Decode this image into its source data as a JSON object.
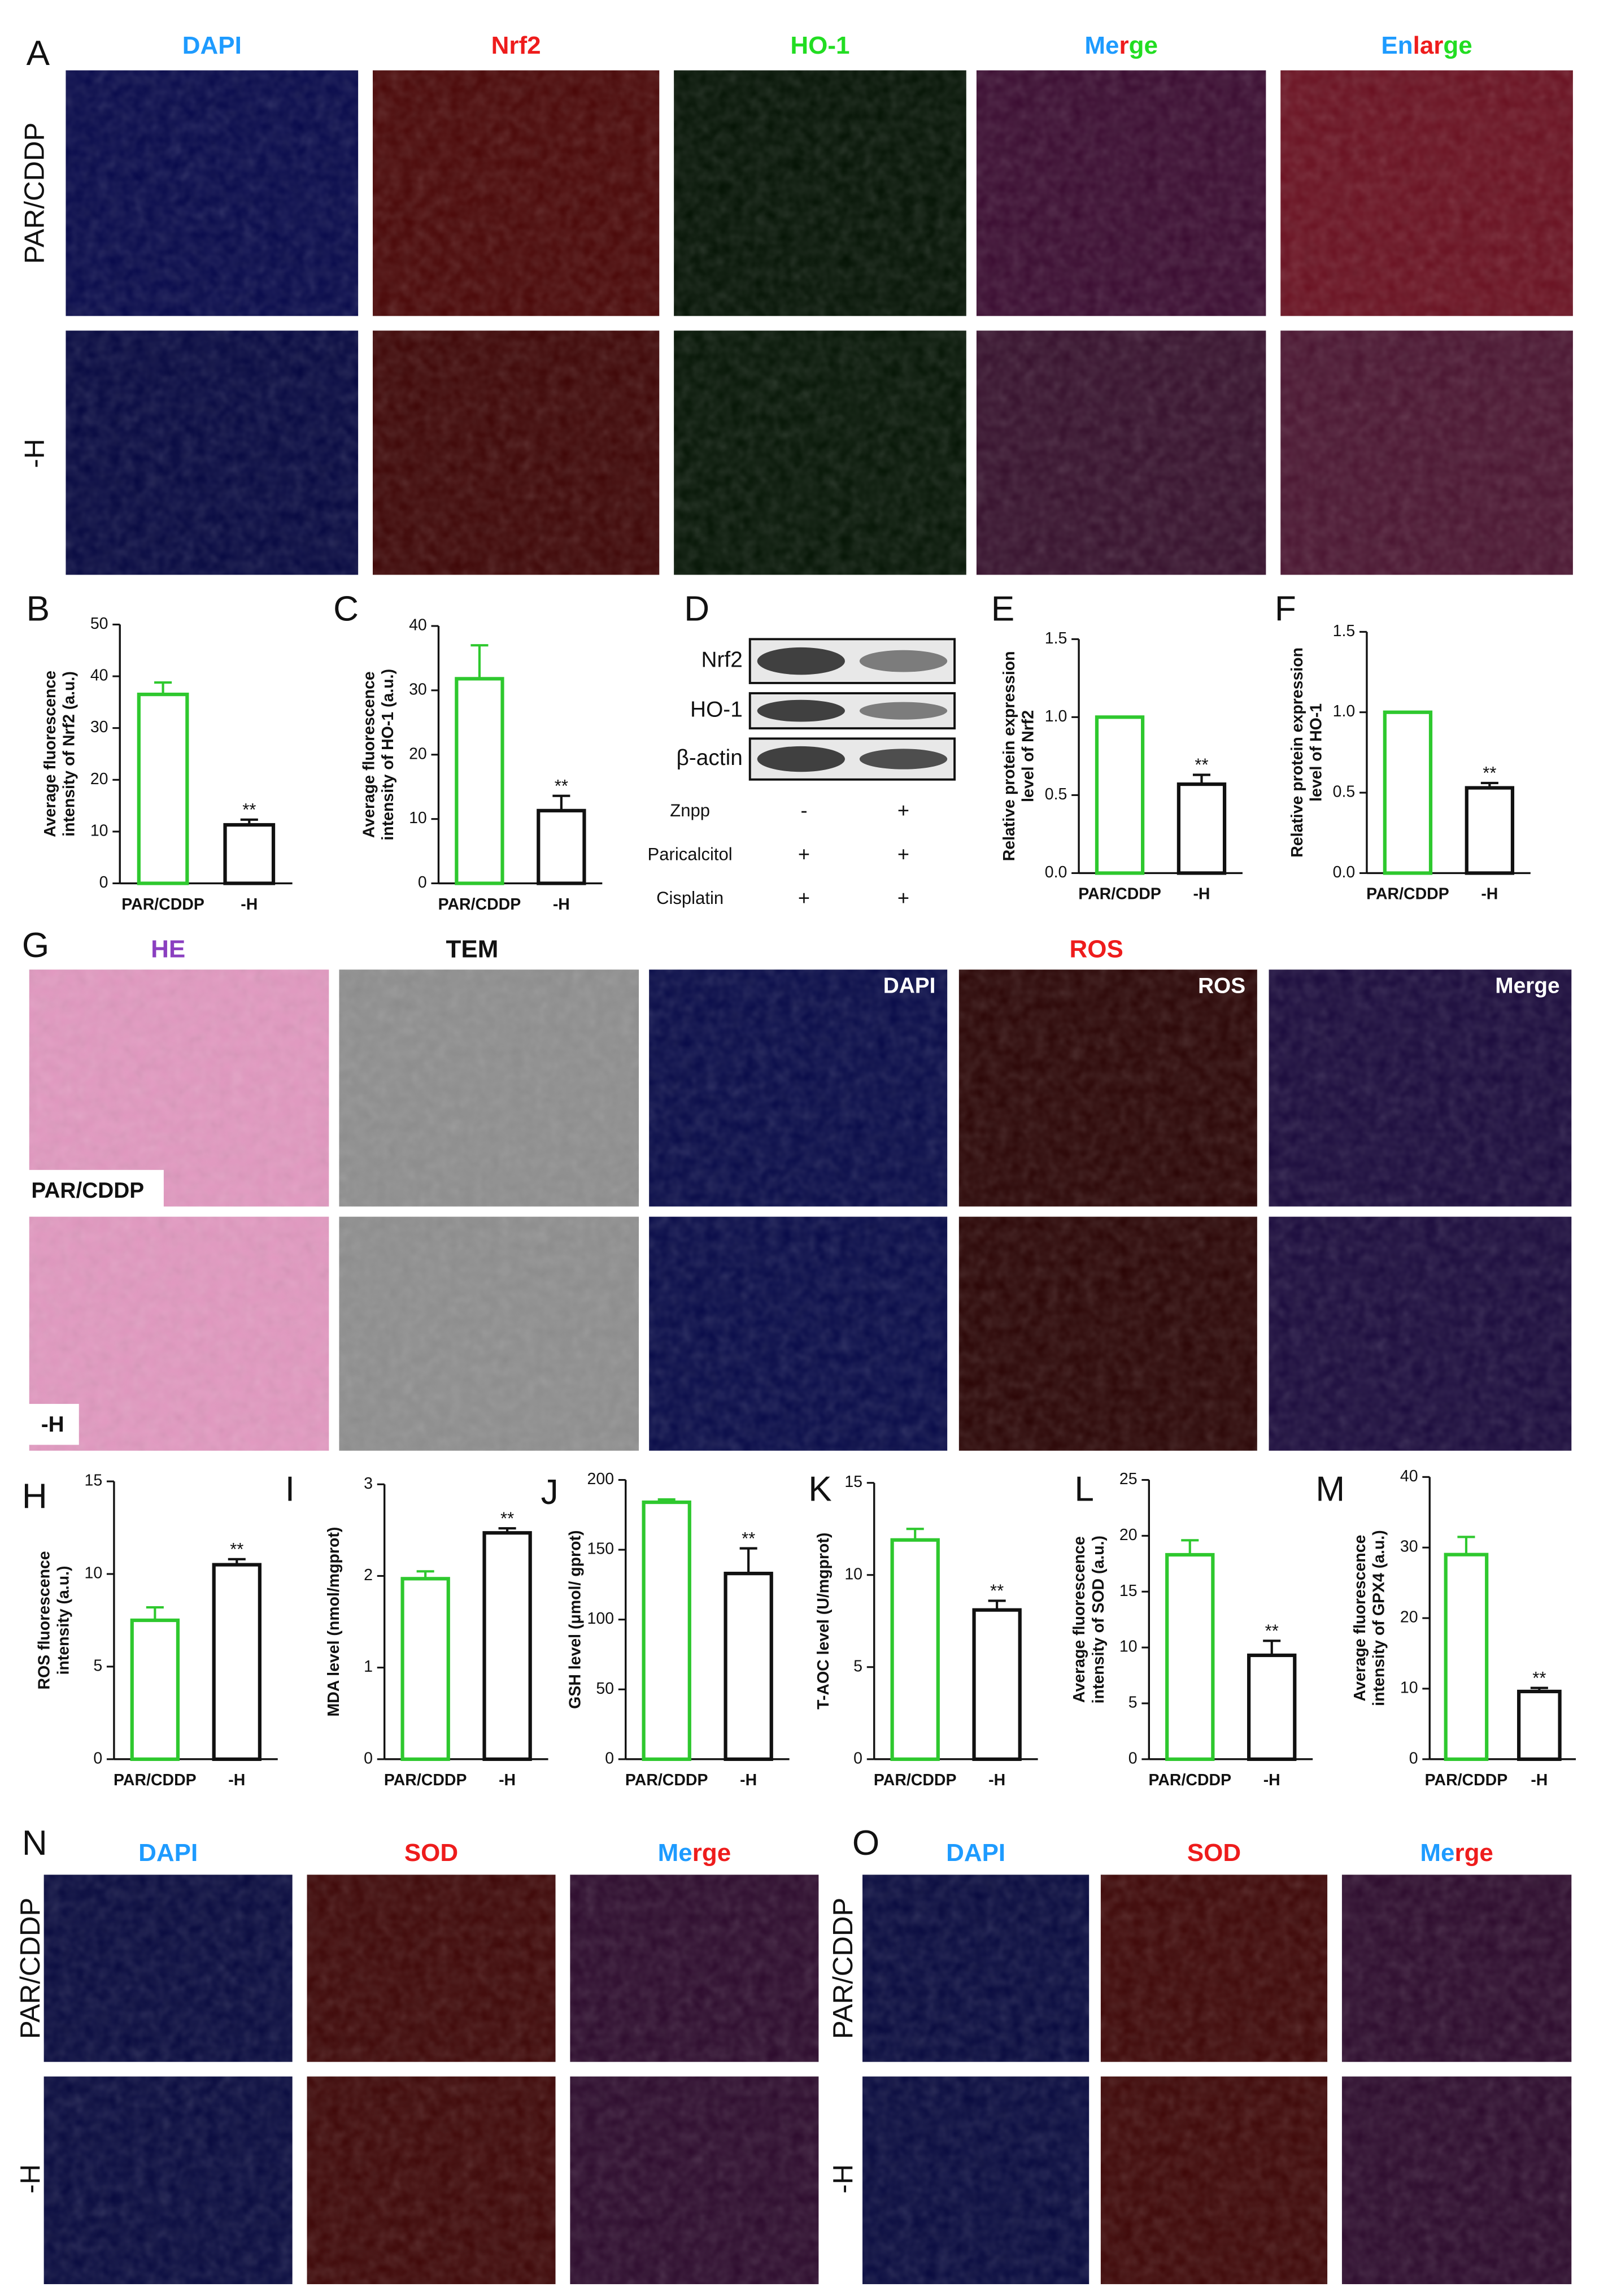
{
  "chart_data": [
    {
      "type": "bar",
      "label": "B",
      "ylabel": [
        "Average fluorescence",
        "intensity of Nrf2 (a.u.)"
      ],
      "categories": [
        "PAR/CDDP",
        "-H"
      ],
      "values": [
        36.5,
        11.3
      ],
      "errors": [
        2.3,
        1.0
      ],
      "significance": [
        null,
        "**"
      ],
      "colors": [
        "#2ec82e",
        "#111111"
      ],
      "ylim": [
        0,
        50
      ],
      "yticks": [
        0,
        10,
        20,
        30,
        40,
        50
      ]
    },
    {
      "type": "bar",
      "label": "C",
      "ylabel": [
        "Average fluorescence",
        "intensity of HO-1 (a.u.)"
      ],
      "categories": [
        "PAR/CDDP",
        "-H"
      ],
      "values": [
        31.8,
        11.3
      ],
      "errors": [
        5.2,
        2.3
      ],
      "significance": [
        null,
        "**"
      ],
      "colors": [
        "#2ec82e",
        "#111111"
      ],
      "ylim": [
        0,
        40
      ],
      "yticks": [
        0,
        10,
        20,
        30,
        40
      ]
    },
    {
      "type": "bar",
      "label": "E",
      "ylabel": [
        "Relative protein expression",
        "level of Nrf2"
      ],
      "categories": [
        "PAR/CDDP",
        "-H"
      ],
      "values": [
        1.0,
        0.57
      ],
      "errors": [
        0,
        0.06
      ],
      "significance": [
        null,
        "**"
      ],
      "colors": [
        "#2ec82e",
        "#111111"
      ],
      "ylim": [
        0,
        1.5
      ],
      "yticks": [
        {
          "value": 0,
          "label": "0.0"
        },
        0.5,
        {
          "value": 1,
          "label": "1.0"
        },
        1.5
      ]
    },
    {
      "type": "bar",
      "label": "F",
      "ylabel": [
        "Relative protein expression",
        "level of HO-1"
      ],
      "categories": [
        "PAR/CDDP",
        "-H"
      ],
      "values": [
        1.0,
        0.53
      ],
      "errors": [
        0,
        0.03
      ],
      "significance": [
        null,
        "**"
      ],
      "colors": [
        "#2ec82e",
        "#111111"
      ],
      "ylim": [
        0,
        1.5
      ],
      "yticks": [
        {
          "value": 0,
          "label": "0.0"
        },
        0.5,
        {
          "value": 1,
          "label": "1.0"
        },
        1.5
      ]
    },
    {
      "type": "bar",
      "label": "H",
      "ylabel": [
        "ROS fluorescence",
        "intensity (a.u.)"
      ],
      "categories": [
        "PAR/CDDP",
        "-H"
      ],
      "values": [
        7.5,
        10.5
      ],
      "errors": [
        0.7,
        0.3
      ],
      "significance": [
        null,
        "**"
      ],
      "colors": [
        "#2ec82e",
        "#111111"
      ],
      "ylim": [
        0,
        15
      ],
      "yticks": [
        0,
        5,
        10,
        15
      ]
    },
    {
      "type": "bar",
      "label": "I",
      "ylabel": [
        "MDA level (nmol/mgprot)"
      ],
      "categories": [
        "PAR/CDDP",
        "-H"
      ],
      "values": [
        1.97,
        2.47
      ],
      "errors": [
        0.08,
        0.05
      ],
      "significance": [
        null,
        "**"
      ],
      "colors": [
        "#2ec82e",
        "#111111"
      ],
      "ylim": [
        0,
        3
      ],
      "yticks": [
        0,
        1,
        2,
        3
      ]
    },
    {
      "type": "bar",
      "label": "J",
      "ylabel": [
        "GSH level (μmol/ gprot)"
      ],
      "categories": [
        "PAR/CDDP",
        "-H"
      ],
      "values": [
        184,
        133
      ],
      "errors": [
        2,
        18
      ],
      "significance": [
        null,
        "**"
      ],
      "colors": [
        "#2ec82e",
        "#111111"
      ],
      "ylim": [
        0,
        200
      ],
      "yticks": [
        0,
        50,
        100,
        150,
        200
      ]
    },
    {
      "type": "bar",
      "label": "K",
      "ylabel": [
        "T-AOC level (U/mgprot)"
      ],
      "categories": [
        "PAR/CDDP",
        "-H"
      ],
      "values": [
        11.9,
        8.1
      ],
      "errors": [
        0.6,
        0.5
      ],
      "significance": [
        null,
        "**"
      ],
      "colors": [
        "#2ec82e",
        "#111111"
      ],
      "ylim": [
        0,
        15
      ],
      "yticks": [
        0,
        5,
        10,
        15
      ]
    },
    {
      "type": "bar",
      "label": "L",
      "ylabel": [
        "Average fluorescence",
        "intensity of SOD (a.u.)"
      ],
      "categories": [
        "PAR/CDDP",
        "-H"
      ],
      "values": [
        18.3,
        9.3
      ],
      "errors": [
        1.3,
        1.3
      ],
      "significance": [
        null,
        "**"
      ],
      "colors": [
        "#2ec82e",
        "#111111"
      ],
      "ylim": [
        0,
        25
      ],
      "yticks": [
        0,
        5,
        10,
        15,
        20,
        25
      ]
    },
    {
      "type": "bar",
      "label": "M",
      "ylabel": [
        "Average fluorescence",
        "intensity of GPX4 (a.u.)"
      ],
      "categories": [
        "PAR/CDDP",
        "-H"
      ],
      "values": [
        29,
        9.6
      ],
      "errors": [
        2.5,
        0.5
      ],
      "significance": [
        null,
        "**"
      ],
      "colors": [
        "#2ec82e",
        "#111111"
      ],
      "ylim": [
        0,
        40
      ],
      "yticks": [
        0,
        10,
        20,
        30,
        40
      ]
    }
  ],
  "panel_A": {
    "label": "A",
    "rows": [
      "PAR/CDDP",
      "-H"
    ],
    "headers": [
      {
        "parts": [
          "DAPI"
        ],
        "colors": [
          "#1e9bff"
        ]
      },
      {
        "parts": [
          "Nrf2"
        ],
        "colors": [
          "#ee1c1c"
        ]
      },
      {
        "parts": [
          "HO-1"
        ],
        "colors": [
          "#22dd22"
        ]
      },
      {
        "parts": [
          "Me",
          "r",
          "ge"
        ],
        "colors": [
          "#1e9bff",
          "#ee1c1c",
          "#22dd22"
        ]
      },
      {
        "parts": [
          "En",
          "lar",
          "ge"
        ],
        "colors": [
          "#1e9bff",
          "#ee1c1c",
          "#22dd22"
        ]
      }
    ]
  },
  "western_blot": {
    "label": "D",
    "bands": [
      "Nrf2",
      "HO-1",
      "β-actin"
    ],
    "treatments": [
      {
        "name": "Znpp",
        "lanes": [
          "-",
          "+"
        ]
      },
      {
        "name": "Paricalcitol",
        "lanes": [
          "+",
          "+"
        ]
      },
      {
        "name": "Cisplatin",
        "lanes": [
          "+",
          "+"
        ]
      }
    ]
  },
  "panel_G": {
    "label": "G",
    "rows": [
      "PAR/CDDP",
      "-H"
    ],
    "headers": [
      {
        "parts": [
          "HE"
        ],
        "colors": [
          "#8a3fc0"
        ]
      },
      {
        "parts": [
          "TEM"
        ],
        "colors": [
          "#111111"
        ]
      },
      {
        "parts": [
          "ROS"
        ],
        "colors": [
          "#ee1c1c"
        ]
      }
    ],
    "inner_labels": [
      "DAPI",
      "ROS",
      "Merge"
    ]
  },
  "panel_N": {
    "label": "N",
    "rows": [
      "PAR/CDDP",
      "-H"
    ],
    "headers": [
      {
        "parts": [
          "DAPI"
        ],
        "colors": [
          "#1e9bff"
        ]
      },
      {
        "parts": [
          "SOD"
        ],
        "colors": [
          "#ee1c1c"
        ]
      },
      {
        "parts": [
          "Me",
          "r",
          "ge"
        ],
        "colors": [
          "#1e9bff",
          "#ee1c1c",
          "#ee1c1c"
        ]
      }
    ]
  },
  "panel_O": {
    "label": "O",
    "rows": [
      "PAR/CDDP",
      "-H"
    ],
    "headers": [
      {
        "parts": [
          "DAPI"
        ],
        "colors": [
          "#1e9bff"
        ]
      },
      {
        "parts": [
          "SOD"
        ],
        "colors": [
          "#ee1c1c"
        ]
      },
      {
        "parts": [
          "Me",
          "r",
          "ge"
        ],
        "colors": [
          "#1e9bff",
          "#ee1c1c",
          "#ee1c1c"
        ]
      }
    ]
  }
}
